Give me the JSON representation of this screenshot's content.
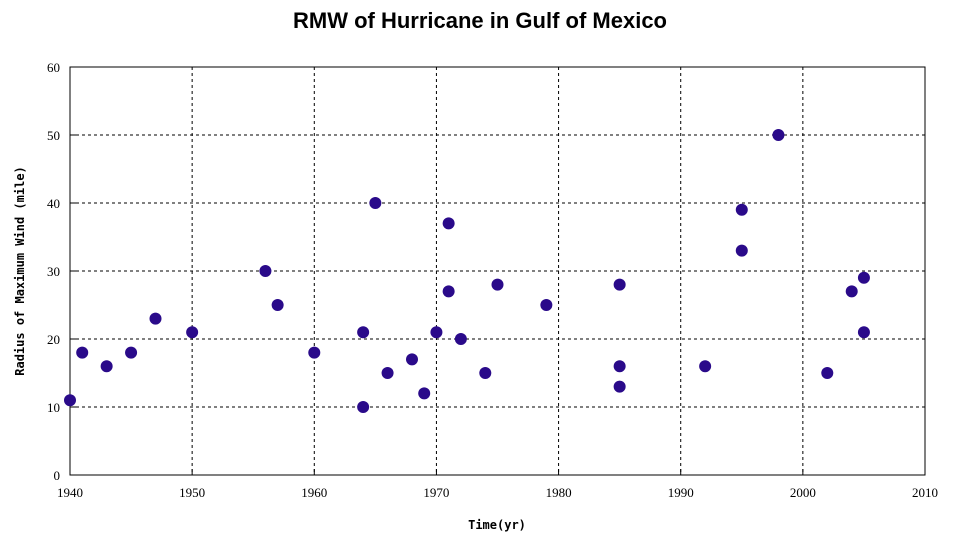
{
  "chart_data": {
    "type": "scatter",
    "title": "RMW of Hurricane in Gulf of Mexico",
    "xlabel": "Time(yr)",
    "ylabel": "Radius of Maximum Wind (mile)",
    "xlim": [
      1940,
      2010
    ],
    "ylim": [
      0,
      60
    ],
    "xticks": [
      1940,
      1950,
      1960,
      1970,
      1980,
      1990,
      2000,
      2010
    ],
    "yticks": [
      0,
      10,
      20,
      30,
      40,
      50,
      60
    ],
    "grid": true,
    "marker_color": "#2a0a8a",
    "points": [
      {
        "x": 1940,
        "y": 11
      },
      {
        "x": 1941,
        "y": 18
      },
      {
        "x": 1943,
        "y": 16
      },
      {
        "x": 1945,
        "y": 18
      },
      {
        "x": 1947,
        "y": 23
      },
      {
        "x": 1950,
        "y": 21
      },
      {
        "x": 1956,
        "y": 30
      },
      {
        "x": 1957,
        "y": 25
      },
      {
        "x": 1960,
        "y": 18
      },
      {
        "x": 1964,
        "y": 21
      },
      {
        "x": 1964,
        "y": 10
      },
      {
        "x": 1965,
        "y": 40
      },
      {
        "x": 1966,
        "y": 15
      },
      {
        "x": 1968,
        "y": 17
      },
      {
        "x": 1969,
        "y": 12
      },
      {
        "x": 1970,
        "y": 21
      },
      {
        "x": 1971,
        "y": 37
      },
      {
        "x": 1971,
        "y": 27
      },
      {
        "x": 1972,
        "y": 20
      },
      {
        "x": 1974,
        "y": 15
      },
      {
        "x": 1975,
        "y": 28
      },
      {
        "x": 1979,
        "y": 25
      },
      {
        "x": 1985,
        "y": 28
      },
      {
        "x": 1985,
        "y": 16
      },
      {
        "x": 1985,
        "y": 13
      },
      {
        "x": 1992,
        "y": 16
      },
      {
        "x": 1995,
        "y": 39
      },
      {
        "x": 1995,
        "y": 33
      },
      {
        "x": 1998,
        "y": 50
      },
      {
        "x": 2002,
        "y": 15
      },
      {
        "x": 2004,
        "y": 27
      },
      {
        "x": 2005,
        "y": 29
      },
      {
        "x": 2005,
        "y": 21
      }
    ]
  }
}
